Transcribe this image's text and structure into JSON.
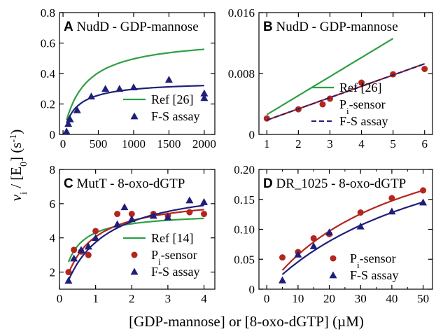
{
  "colors": {
    "green": "#2ea043",
    "red": "#b3261e",
    "navy": "#1f1f7a",
    "axis": "#000000"
  },
  "y_axis_label": {
    "main": "v",
    "sub": "i",
    "rest": " / [E",
    "sub2": "0",
    "rest2": "] (s",
    "sup": "-1",
    "end": ")"
  },
  "x_axis_label": "[GDP-mannose] or [8-oxo-dGTP] (µM)",
  "chart_data": [
    {
      "panel": "A",
      "title": "NudD - GDP-mannose",
      "type": "scatter",
      "xlim": [
        -50,
        2150
      ],
      "ylim": [
        0,
        0.8
      ],
      "xticks": [
        0,
        500,
        1000,
        1500,
        2000
      ],
      "xtick_labels": [
        "0",
        "500",
        "1000",
        "1500",
        "2000"
      ],
      "yticks": [
        0,
        0.2,
        0.4,
        0.6,
        0.8
      ],
      "ytick_labels": [
        "0",
        "0.2",
        "0.4",
        "0.6",
        "0.8"
      ],
      "legend_position": "bottom-right",
      "series": [
        {
          "name": "Ref [26]",
          "kind": "line",
          "color": "#2ea043",
          "model": "mm",
          "vmax": 0.64,
          "km": 290,
          "x_range": [
            50,
            2000
          ]
        },
        {
          "name": "F-S assay",
          "kind": "scatter+fit",
          "marker": "triangle",
          "color": "#1f1f7a",
          "x": [
            50,
            75,
            100,
            200,
            400,
            600,
            800,
            1000,
            1500,
            2000,
            2000
          ],
          "y": [
            0.02,
            0.07,
            0.1,
            0.16,
            0.25,
            0.3,
            0.3,
            0.31,
            0.36,
            0.24,
            0.27
          ],
          "model": "mm",
          "vmax": 0.35,
          "km": 180,
          "x_range": [
            50,
            2000
          ]
        }
      ]
    },
    {
      "panel": "B",
      "title": "NudD - GDP-mannose",
      "type": "scatter",
      "xlim": [
        0.75,
        6.25
      ],
      "ylim": [
        0,
        0.016
      ],
      "xticks": [
        1,
        2,
        3,
        4,
        5,
        6
      ],
      "xtick_labels": [
        "1",
        "2",
        "3",
        "4",
        "5",
        "6"
      ],
      "yticks": [
        0,
        0.008,
        0.016
      ],
      "ytick_labels": [
        "0",
        "0.008",
        "0.016"
      ],
      "legend_position": "bottom-right",
      "series": [
        {
          "name": "Ref [26]",
          "kind": "line",
          "color": "#2ea043",
          "model": "linear",
          "slope": 0.0025,
          "intercept": 0.0001,
          "x_range": [
            1,
            5
          ]
        },
        {
          "name": "Pi-sensor",
          "label_main": "P",
          "label_sub": "i",
          "label_rest": "-sensor",
          "kind": "scatter+fit",
          "marker": "circle",
          "color": "#b3261e",
          "x": [
            1,
            2,
            3,
            4,
            5,
            6
          ],
          "y": [
            0.0021,
            0.0033,
            0.0047,
            0.0068,
            0.0079,
            0.0086
          ],
          "model": "linear",
          "slope": 0.00148,
          "intercept": 0.0004,
          "x_range": [
            1,
            6
          ]
        },
        {
          "name": "F-S assay",
          "kind": "dashed-line",
          "color": "#1f1f7a",
          "model": "linear",
          "slope": 0.00148,
          "intercept": 0.0004,
          "x_range": [
            1,
            6
          ]
        }
      ]
    },
    {
      "panel": "C",
      "title": "MutT - 8-oxo-dGTP",
      "type": "scatter",
      "xlim": [
        0,
        4.3
      ],
      "ylim": [
        1,
        8
      ],
      "xticks": [
        0,
        1,
        2,
        3,
        4
      ],
      "xtick_labels": [
        "0",
        "1",
        "2",
        "3",
        "4"
      ],
      "yticks": [
        2,
        4,
        6,
        8
      ],
      "ytick_labels": [
        "2",
        "4",
        "6",
        "8"
      ],
      "legend_position": "bottom-right",
      "series": [
        {
          "name": "Ref [14]",
          "kind": "line",
          "color": "#2ea043",
          "model": "mm",
          "vmax": 5.5,
          "km": 0.28,
          "x_range": [
            0.25,
            4
          ]
        },
        {
          "name": "Pi-sensor",
          "label_main": "P",
          "label_sub": "i",
          "label_rest": "-sensor",
          "kind": "scatter+fit",
          "marker": "circle",
          "color": "#b3261e",
          "x": [
            0.25,
            0.4,
            0.6,
            0.8,
            1.0,
            1.6,
            2.0,
            2.6,
            3.0,
            3.6,
            4.0
          ],
          "y": [
            2.0,
            3.3,
            3.2,
            3.0,
            4.4,
            5.4,
            5.4,
            5.4,
            5.3,
            5.5,
            5.4
          ],
          "model": "mm",
          "vmax": 6.5,
          "km": 0.6,
          "x_range": [
            0.25,
            4
          ]
        },
        {
          "name": "F-S assay",
          "kind": "scatter+fit",
          "marker": "triangle",
          "color": "#1f1f7a",
          "x": [
            0.25,
            0.4,
            0.6,
            0.8,
            1.0,
            1.6,
            1.8,
            2.0,
            2.6,
            3.0,
            3.6,
            4.0
          ],
          "y": [
            1.5,
            2.8,
            3.3,
            3.5,
            4.0,
            4.8,
            5.8,
            5.1,
            5.3,
            5.2,
            6.2,
            6.1
          ],
          "model": "mm",
          "vmax": 7.3,
          "km": 0.95,
          "x_range": [
            0.25,
            4
          ]
        }
      ]
    },
    {
      "panel": "D",
      "title": "DR_1025 - 8-oxo-dGTP",
      "type": "scatter",
      "xlim": [
        -2.5,
        53
      ],
      "ylim": [
        0,
        0.2
      ],
      "xticks": [
        0,
        10,
        20,
        30,
        40,
        50
      ],
      "xtick_labels": [
        "0",
        "10",
        "20",
        "30",
        "40",
        "50"
      ],
      "xticks_minor": [
        5,
        15,
        25,
        35,
        45
      ],
      "yticks": [
        0,
        0.05,
        0.1,
        0.15,
        0.2
      ],
      "ytick_labels": [
        "0",
        "0.05",
        "0.10",
        "0.15",
        "0.20"
      ],
      "legend_position": "bottom-right",
      "series": [
        {
          "name": "Pi-sensor",
          "label_main": "P",
          "label_sub": "i",
          "label_rest": "-sensor",
          "kind": "scatter+fit",
          "marker": "circle",
          "color": "#b3261e",
          "x": [
            5,
            10,
            15,
            20,
            30,
            40,
            50
          ],
          "y": [
            0.053,
            0.062,
            0.085,
            0.092,
            0.128,
            0.152,
            0.165
          ],
          "model": "mm",
          "vmax": 0.31,
          "km": 44,
          "x_range": [
            5,
            50
          ]
        },
        {
          "name": "F-S assay",
          "kind": "scatter+fit",
          "marker": "triangle",
          "color": "#1f1f7a",
          "x": [
            5,
            10,
            15,
            20,
            30,
            40,
            50
          ],
          "y": [
            0.015,
            0.058,
            0.072,
            0.095,
            0.105,
            0.13,
            0.145
          ],
          "model": "mm",
          "vmax": 0.32,
          "km": 60,
          "x_range": [
            5,
            50
          ]
        }
      ]
    }
  ]
}
